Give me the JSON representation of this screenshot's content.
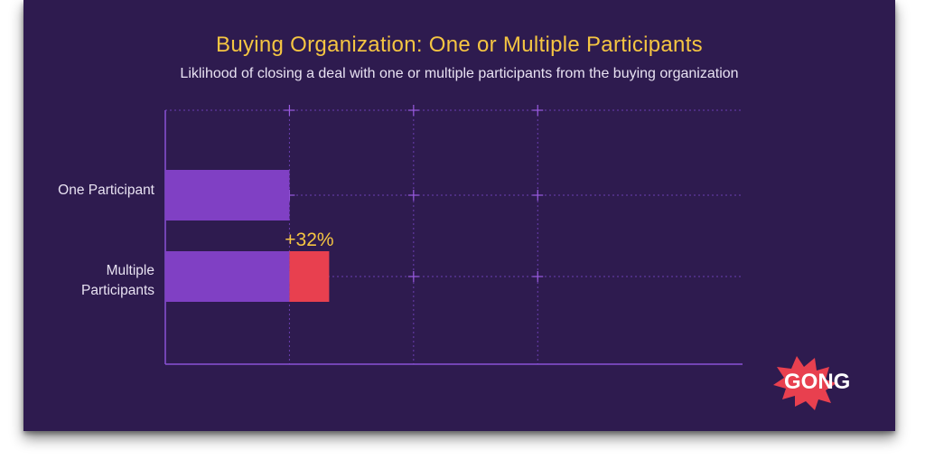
{
  "chart_data": {
    "type": "bar",
    "orientation": "horizontal",
    "stacked": true,
    "title": "Buying Organization: One or Multiple Participants",
    "subtitle": "Liklihood of closing a deal with one or multiple participants from the buying organization",
    "categories": [
      "One Participant",
      "Multiple\nParticipants"
    ],
    "series": [
      {
        "values": [
          1.0,
          1.0
        ],
        "color": "#8040c4"
      },
      {
        "values": [
          0,
          0.32
        ],
        "color": "#e8404f"
      }
    ],
    "annotations": [
      {
        "category": "Multiple\nParticipants",
        "text": "+32%",
        "color": "#f5c542"
      }
    ],
    "xlim": [
      0,
      4.65
    ],
    "grid": true,
    "legend": "none"
  },
  "logo": {
    "text": "GONG",
    "highlight_letters": "GO",
    "burst_color": "#e8404f"
  },
  "colors": {
    "background": "#2e1b4f",
    "title": "#f5c542",
    "text": "#e8e2f2",
    "axis": "#8a52d6",
    "grid": "#6a3fb0"
  }
}
